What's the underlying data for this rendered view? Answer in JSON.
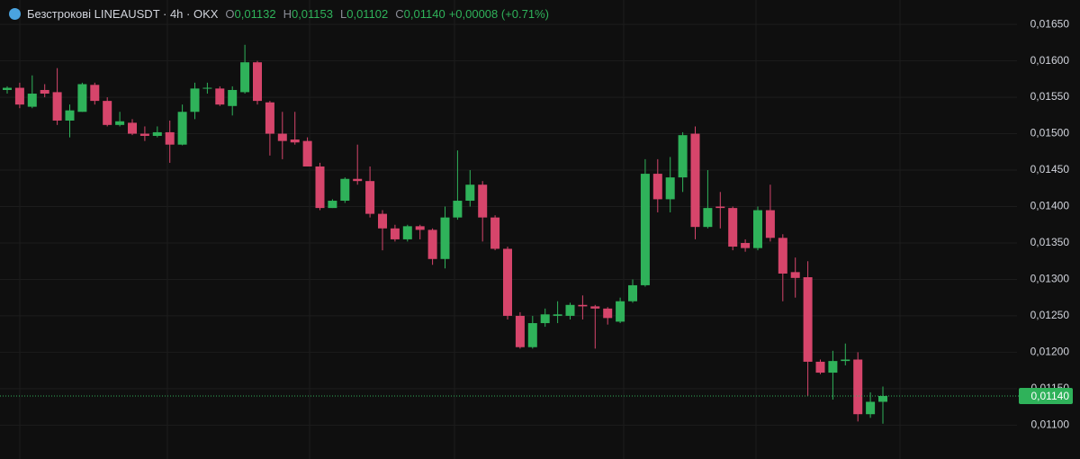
{
  "chart_data": {
    "type": "candlestick",
    "title": "Безстрокові LINEAUSDT · 4h · OKX",
    "ohlc_header": [
      {
        "key": "O",
        "value": "0,01132"
      },
      {
        "key": "H",
        "value": "0,01153"
      },
      {
        "key": "L",
        "value": "0,01102"
      },
      {
        "key": "C",
        "value": "0,01140"
      }
    ],
    "change": "+0,00008 (+0.71%)",
    "up_color": "#2fb25a",
    "down_color": "#d6456b",
    "open": [
      0.0156,
      0.01563,
      0.01537,
      0.0156,
      0.01557,
      0.01518,
      0.0153,
      0.01567,
      0.01545,
      0.01512,
      0.01515,
      0.015,
      0.01497,
      0.01502,
      0.01485,
      0.0153,
      0.01562,
      0.01562,
      0.01538,
      0.01557,
      0.01598,
      0.01543,
      0.015,
      0.01492,
      0.0149,
      0.01455,
      0.01398,
      0.01408,
      0.01438,
      0.01435,
      0.0139,
      0.0137,
      0.01355,
      0.01373,
      0.01368,
      0.01328,
      0.01385,
      0.01408,
      0.0143,
      0.01385,
      0.01342,
      0.0125,
      0.01207,
      0.0124,
      0.0125,
      0.0125,
      0.01265,
      0.01263,
      0.0126,
      0.01242,
      0.0127,
      0.01292,
      0.01445,
      0.0141,
      0.0144,
      0.015,
      0.01372,
      0.014,
      0.01398,
      0.0135,
      0.01343,
      0.01395,
      0.01357,
      0.0131,
      0.01303,
      0.01187,
      0.01172,
      0.01188,
      0.0119,
      0.01115,
      0.01132
    ],
    "high": [
      0.01565,
      0.0157,
      0.0158,
      0.01568,
      0.0159,
      0.0154,
      0.0157,
      0.0157,
      0.0155,
      0.0153,
      0.0152,
      0.0151,
      0.0151,
      0.01518,
      0.0154,
      0.0157,
      0.0157,
      0.01565,
      0.01565,
      0.01622,
      0.016,
      0.01545,
      0.0153,
      0.0153,
      0.01495,
      0.0146,
      0.0141,
      0.0144,
      0.01485,
      0.01455,
      0.01395,
      0.01375,
      0.01375,
      0.01375,
      0.0137,
      0.014,
      0.01477,
      0.0145,
      0.01435,
      0.01388,
      0.01345,
      0.01255,
      0.0125,
      0.0126,
      0.0127,
      0.01268,
      0.01278,
      0.01265,
      0.01262,
      0.01275,
      0.013,
      0.01465,
      0.01465,
      0.01468,
      0.01502,
      0.0151,
      0.0145,
      0.0142,
      0.014,
      0.01355,
      0.014,
      0.0143,
      0.01362,
      0.0133,
      0.01325,
      0.0119,
      0.01202,
      0.01212,
      0.012,
      0.01145,
      0.01153
    ],
    "low": [
      0.01555,
      0.01535,
      0.01535,
      0.0155,
      0.01512,
      0.01495,
      0.0153,
      0.0154,
      0.0151,
      0.0151,
      0.01498,
      0.0149,
      0.01495,
      0.0146,
      0.01484,
      0.0152,
      0.01555,
      0.01538,
      0.01525,
      0.01555,
      0.0154,
      0.0147,
      0.01465,
      0.01485,
      0.01455,
      0.01395,
      0.01398,
      0.01405,
      0.0143,
      0.01385,
      0.0134,
      0.01352,
      0.01352,
      0.01355,
      0.0132,
      0.01315,
      0.01382,
      0.014,
      0.01352,
      0.0134,
      0.01245,
      0.01205,
      0.01205,
      0.01235,
      0.0124,
      0.01245,
      0.01245,
      0.01205,
      0.01238,
      0.0124,
      0.01268,
      0.0129,
      0.01392,
      0.01392,
      0.0142,
      0.01355,
      0.0137,
      0.0137,
      0.0134,
      0.01338,
      0.0134,
      0.01352,
      0.0127,
      0.01275,
      0.0114,
      0.0117,
      0.01135,
      0.01182,
      0.01105,
      0.0111,
      0.01102
    ],
    "close": [
      0.01563,
      0.0154,
      0.01555,
      0.01555,
      0.01518,
      0.01532,
      0.01568,
      0.01545,
      0.01512,
      0.01517,
      0.015,
      0.01497,
      0.01502,
      0.01485,
      0.0153,
      0.01562,
      0.01563,
      0.0154,
      0.0156,
      0.01598,
      0.01545,
      0.015,
      0.0149,
      0.01488,
      0.01455,
      0.01398,
      0.01408,
      0.01438,
      0.01435,
      0.0139,
      0.0137,
      0.01355,
      0.01373,
      0.01368,
      0.01328,
      0.01385,
      0.01408,
      0.0143,
      0.01385,
      0.01342,
      0.0125,
      0.01207,
      0.0124,
      0.01252,
      0.01252,
      0.01265,
      0.01263,
      0.0126,
      0.01247,
      0.0127,
      0.01292,
      0.01445,
      0.0141,
      0.0144,
      0.01498,
      0.01372,
      0.01398,
      0.01398,
      0.01345,
      0.01343,
      0.01395,
      0.01357,
      0.01308,
      0.01302,
      0.01187,
      0.01172,
      0.01188,
      0.0119,
      0.01115,
      0.01132,
      0.0114
    ],
    "ylim": [
      0.010535,
      0.016835
    ],
    "yticks": [
      {
        "value": 0.011,
        "label": "0,01100"
      },
      {
        "value": 0.0115,
        "label": "0,01150"
      },
      {
        "value": 0.012,
        "label": "0,01200"
      },
      {
        "value": 0.0125,
        "label": "0,01250"
      },
      {
        "value": 0.013,
        "label": "0,01300"
      },
      {
        "value": 0.0135,
        "label": "0,01350"
      },
      {
        "value": 0.014,
        "label": "0,01400"
      },
      {
        "value": 0.0145,
        "label": "0,01450"
      },
      {
        "value": 0.015,
        "label": "0,01500"
      },
      {
        "value": 0.0155,
        "label": "0,01550"
      },
      {
        "value": 0.016,
        "label": "0,01600"
      },
      {
        "value": 0.0165,
        "label": "0,01650"
      }
    ],
    "last_price": {
      "value": 0.0114,
      "label": "0,01140"
    },
    "grid": true
  }
}
